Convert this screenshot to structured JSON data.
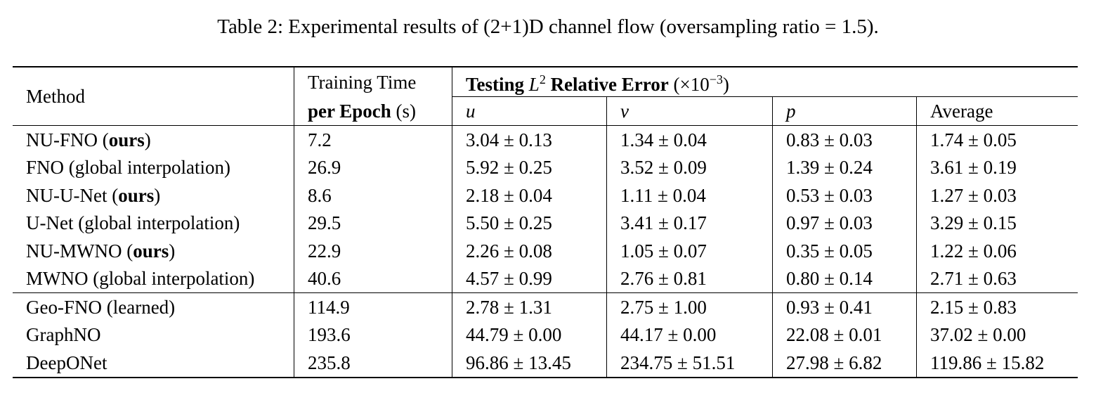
{
  "caption": "Table 2: Experimental results of (2+1)D channel flow (oversampling ratio = 1.5).",
  "header": {
    "method": "Method",
    "training_time_line1": "Training Time",
    "training_time_line2_bold": "per Epoch",
    "training_time_line2_unit": " (s)",
    "testing_prefix": "Testing ",
    "testing_L": "L",
    "testing_sup": "2",
    "testing_suffix": " Relative Error",
    "testing_scale": " (×10",
    "testing_scale_exp": "−3",
    "testing_scale_close": ")",
    "col_u": "u",
    "col_v": "v",
    "col_p": "p",
    "col_avg": "Average"
  },
  "rows": [
    {
      "method": "NU-FNO",
      "method_suffix": "ours",
      "time": "7.2",
      "u": "3.04 ± 0.13",
      "v": "1.34 ± 0.04",
      "p": "0.83 ± 0.03",
      "avg": "1.74 ± 0.05"
    },
    {
      "method": "FNO (global interpolation)",
      "method_suffix": "",
      "time": "26.9",
      "u": "5.92 ± 0.25",
      "v": "3.52 ± 0.09",
      "p": "1.39 ± 0.24",
      "avg": "3.61 ± 0.19"
    },
    {
      "method": "NU-U-Net",
      "method_suffix": "ours",
      "time": "8.6",
      "u": "2.18 ± 0.04",
      "v": "1.11 ± 0.04",
      "p": "0.53 ± 0.03",
      "avg": "1.27 ± 0.03"
    },
    {
      "method": "U-Net (global interpolation)",
      "method_suffix": "",
      "time": "29.5",
      "u": "5.50 ± 0.25",
      "v": "3.41 ± 0.17",
      "p": "0.97 ± 0.03",
      "avg": "3.29 ± 0.15"
    },
    {
      "method": "NU-MWNO",
      "method_suffix": "ours",
      "time": "22.9",
      "u": "2.26 ± 0.08",
      "v": "1.05 ± 0.07",
      "p": "0.35 ± 0.05",
      "avg": "1.22 ± 0.06"
    },
    {
      "method": "MWNO (global interpolation)",
      "method_suffix": "",
      "time": "40.6",
      "u": "4.57 ± 0.99",
      "v": "2.76 ± 0.81",
      "p": "0.80 ± 0.14",
      "avg": "2.71 ± 0.63"
    },
    {
      "method": "Geo-FNO (learned)",
      "method_suffix": "",
      "time": "114.9",
      "u": "2.78 ± 1.31",
      "v": "2.75 ± 1.00",
      "p": "0.93 ± 0.41",
      "avg": "2.15 ± 0.83"
    },
    {
      "method": "GraphNO",
      "method_suffix": "",
      "time": "193.6",
      "u": "44.79 ± 0.00",
      "v": "44.17 ± 0.00",
      "p": "22.08 ± 0.01",
      "avg": "37.02 ± 0.00"
    },
    {
      "method": "DeepONet",
      "method_suffix": "",
      "time": "235.8",
      "u": "96.86 ± 13.45",
      "v": "234.75 ± 51.51",
      "p": "27.98 ± 6.82",
      "avg": "119.86 ± 15.82"
    }
  ]
}
